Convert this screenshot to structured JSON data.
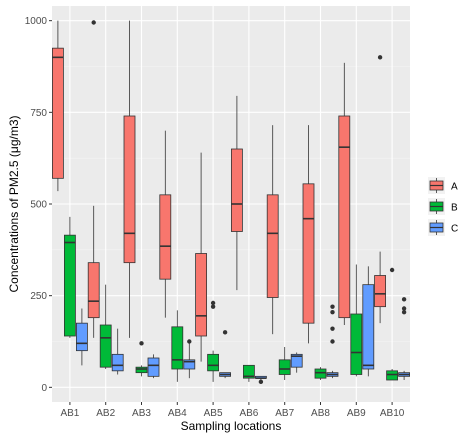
{
  "chart_data": {
    "type": "box",
    "xlabel": "Sampling locations",
    "ylabel": "Concentrations of PM2.5 (μg/m3)",
    "ylim": [
      -40,
      1040
    ],
    "yticks": [
      0,
      250,
      500,
      750,
      1000
    ],
    "grid": true,
    "legend_position": "right",
    "categories": [
      "AB1",
      "AB2",
      "AB3",
      "AB4",
      "AB5",
      "AB6",
      "AB7",
      "AB8",
      "AB9",
      "AB10"
    ],
    "series": [
      {
        "name": "A",
        "color": "#F8766D",
        "boxes": [
          {
            "min": 535,
            "q1": 570,
            "median": 900,
            "q3": 925,
            "max": 1000,
            "outliers": []
          },
          {
            "min": 135,
            "q1": 190,
            "median": 235,
            "q3": 340,
            "max": 495,
            "outliers": [
              995
            ]
          },
          {
            "min": 135,
            "q1": 340,
            "median": 420,
            "q3": 740,
            "max": 1000,
            "outliers": []
          },
          {
            "min": 190,
            "q1": 295,
            "median": 385,
            "q3": 525,
            "max": 700,
            "outliers": []
          },
          {
            "min": 70,
            "q1": 140,
            "median": 195,
            "q3": 365,
            "max": 640,
            "outliers": []
          },
          {
            "min": 265,
            "q1": 425,
            "median": 500,
            "q3": 650,
            "max": 795,
            "outliers": []
          },
          {
            "min": 145,
            "q1": 245,
            "median": 420,
            "q3": 525,
            "max": 715,
            "outliers": []
          },
          {
            "min": 120,
            "q1": 175,
            "median": 460,
            "q3": 555,
            "max": 715,
            "outliers": []
          },
          {
            "min": 170,
            "q1": 190,
            "median": 655,
            "q3": 740,
            "max": 885,
            "outliers": []
          },
          {
            "min": 175,
            "q1": 220,
            "median": 255,
            "q3": 305,
            "max": 370,
            "outliers": [
              900
            ]
          }
        ]
      },
      {
        "name": "B",
        "color": "#00BA38",
        "boxes": [
          {
            "min": 135,
            "q1": 140,
            "median": 395,
            "q3": 415,
            "max": 465,
            "outliers": []
          },
          {
            "min": 50,
            "q1": 55,
            "median": 135,
            "q3": 170,
            "max": 280,
            "outliers": []
          },
          {
            "min": 30,
            "q1": 40,
            "median": 50,
            "q3": 55,
            "max": 60,
            "outliers": [
              120
            ]
          },
          {
            "min": 15,
            "q1": 50,
            "median": 75,
            "q3": 165,
            "max": 210,
            "outliers": []
          },
          {
            "min": 15,
            "q1": 45,
            "median": 60,
            "q3": 90,
            "max": 100,
            "outliers": [
              230,
              220
            ]
          },
          {
            "min": 15,
            "q1": 25,
            "median": 30,
            "q3": 60,
            "max": 60,
            "outliers": []
          },
          {
            "min": 20,
            "q1": 35,
            "median": 50,
            "q3": 75,
            "max": 110,
            "outliers": []
          },
          {
            "min": 20,
            "q1": 25,
            "median": 40,
            "q3": 50,
            "max": 55,
            "outliers": []
          },
          {
            "min": 30,
            "q1": 35,
            "median": 95,
            "q3": 200,
            "max": 335,
            "outliers": []
          },
          {
            "min": 20,
            "q1": 20,
            "median": 35,
            "q3": 45,
            "max": 50,
            "outliers": [
              320
            ]
          }
        ]
      },
      {
        "name": "C",
        "color": "#619CFF",
        "boxes": [
          {
            "min": 60,
            "q1": 100,
            "median": 120,
            "q3": 175,
            "max": 215,
            "outliers": []
          },
          {
            "min": 35,
            "q1": 45,
            "median": 60,
            "q3": 90,
            "max": 160,
            "outliers": []
          },
          {
            "min": 25,
            "q1": 30,
            "median": 60,
            "q3": 80,
            "max": 90,
            "outliers": []
          },
          {
            "min": 25,
            "q1": 50,
            "median": 70,
            "q3": 75,
            "max": 120,
            "outliers": [
              125
            ]
          },
          {
            "min": 25,
            "q1": 30,
            "median": 35,
            "q3": 40,
            "max": 40,
            "outliers": [
              150
            ]
          },
          {
            "min": 20,
            "q1": 25,
            "median": 25,
            "q3": 30,
            "max": 30,
            "outliers": [
              15
            ]
          },
          {
            "min": 40,
            "q1": 55,
            "median": 85,
            "q3": 90,
            "max": 95,
            "outliers": []
          },
          {
            "min": 25,
            "q1": 30,
            "median": 35,
            "q3": 40,
            "max": 45,
            "outliers": [
              220,
              205,
              160,
              125
            ]
          },
          {
            "min": 30,
            "q1": 50,
            "median": 60,
            "q3": 280,
            "max": 330,
            "outliers": []
          },
          {
            "min": 20,
            "q1": 30,
            "median": 35,
            "q3": 40,
            "max": 45,
            "outliers": [
              240,
              215,
              205
            ]
          }
        ]
      }
    ]
  }
}
